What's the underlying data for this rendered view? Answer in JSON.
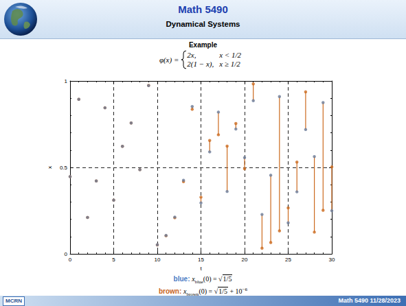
{
  "header": {
    "title": "Math 5490",
    "subtitle": "Dynamical Systems"
  },
  "heading": "Example",
  "formula": {
    "lhs": "φ(x) =",
    "cases": [
      {
        "expr": "2x,",
        "cond": "x < 1/2"
      },
      {
        "expr": "2(1 − x),",
        "cond": "x ≥ 1/2"
      }
    ]
  },
  "chart_data": {
    "type": "scatter",
    "x_label": "t",
    "y_label": "x",
    "xlim": [
      0,
      30
    ],
    "xticks": [
      0,
      5,
      10,
      15,
      20,
      25,
      30
    ],
    "ylim": [
      0,
      1
    ],
    "yticks": [
      0,
      0.5,
      1
    ],
    "grid": true,
    "x": [
      0,
      1,
      2,
      3,
      4,
      5,
      6,
      7,
      8,
      9,
      10,
      11,
      12,
      13,
      14,
      15,
      16,
      17,
      18,
      19,
      20,
      21,
      22,
      23,
      24,
      25,
      26,
      27,
      28,
      29,
      30
    ],
    "series": [
      {
        "name": "brown",
        "color": "#cc6a1e",
        "marker": "circle",
        "values": [
          0.447,
          0.894,
          0.211,
          0.422,
          0.845,
          0.311,
          0.622,
          0.757,
          0.487,
          0.974,
          0.052,
          0.105,
          0.209,
          0.418,
          0.836,
          0.328,
          0.656,
          0.689,
          0.623,
          0.754,
          0.492,
          0.983,
          0.033,
          0.066,
          0.133,
          0.266,
          0.531,
          0.937,
          0.126,
          0.252,
          0.503
        ]
      },
      {
        "name": "blue",
        "color": "#6c7c99",
        "marker": "circle",
        "values": [
          0.447,
          0.894,
          0.211,
          0.422,
          0.845,
          0.311,
          0.622,
          0.757,
          0.487,
          0.973,
          0.053,
          0.107,
          0.213,
          0.426,
          0.852,
          0.295,
          0.59,
          0.82,
          0.361,
          0.722,
          0.557,
          0.886,
          0.228,
          0.455,
          0.91,
          0.18,
          0.359,
          0.719,
          0.563,
          0.875,
          0.25
        ]
      }
    ]
  },
  "captions": [
    {
      "label": "blue:",
      "color": "#4a7cc4",
      "var": "x",
      "sub": "blue",
      "rhs": "(0) = ",
      "radical": "√",
      "radicand": "1/5"
    },
    {
      "label": "brown:",
      "color": "#c8641e",
      "var": "x",
      "sub": "brown",
      "rhs": "(0) = ",
      "radical": "√",
      "radicand": "1/5",
      "extra": " + 10",
      "sup": "−6"
    }
  ],
  "footer": {
    "logo": "MCRN",
    "text": "Math 5490  11/28/2023"
  }
}
